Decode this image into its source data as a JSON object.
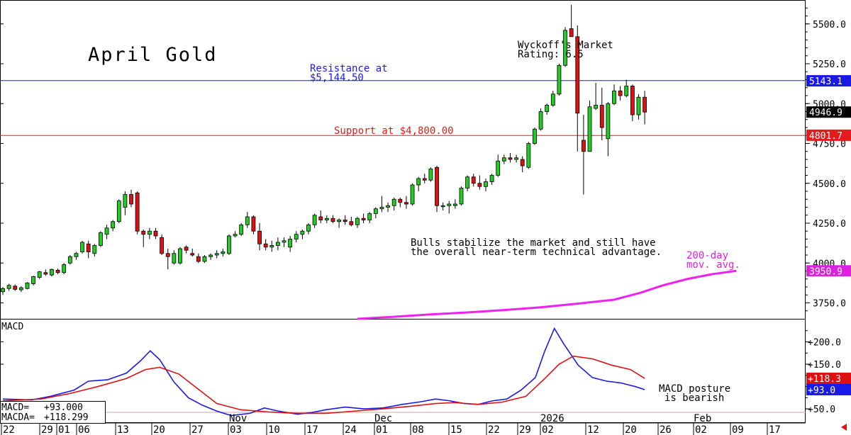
{
  "chart_data": [
    {
      "type": "candlestick",
      "title": "April Gold",
      "y_range": [
        3650,
        5650
      ],
      "y_ticks": [
        "5500.0",
        "5250.0",
        "5000.0",
        "4750.0",
        "4500.0",
        "4250.0",
        "4000.0",
        "3750.0"
      ],
      "x_tick_labels": [
        "22",
        "29",
        "01",
        "06",
        "13",
        "20",
        "27",
        "03",
        "10",
        "17",
        "24",
        "01",
        "08",
        "15",
        "22",
        "29",
        "02",
        "12",
        "20",
        "26",
        "02",
        "09",
        "17"
      ],
      "month_labels": [
        "Nov",
        "Dec",
        "2026",
        "Feb"
      ],
      "annotations": {
        "resistance": {
          "text_line1": "Resistance at",
          "text_line2": "$5,144.50",
          "value": 5144.5
        },
        "support": {
          "text": "Support at $4,800.00",
          "value": 4800.0
        },
        "rating_line1": "Wyckoff's Market",
        "rating_line2": "Rating: 6.5",
        "comment_line1": "Bulls stabilize the market and still have",
        "comment_line2": "the overall near-term technical advantage.",
        "ma_label_line1": "200-day",
        "ma_label_line2": "mov. avg."
      },
      "price_tags": [
        {
          "text": "5143.1",
          "value": 5143.1,
          "color": "#1a1ae6"
        },
        {
          "text": "4946.9",
          "value": 4946.9,
          "color": "#000000"
        },
        {
          "text": "4801.7",
          "value": 4801.7,
          "color": "#e61a1a"
        },
        {
          "text": "3950.9",
          "value": 3950.9,
          "color": "#e020e0"
        }
      ],
      "colors": {
        "up": "#22cc22",
        "down": "#dd1111",
        "resistance": "#1a1ae6",
        "support": "#e61a1a",
        "ma": "#ee22ee"
      },
      "candles": [
        [
          3820,
          3850,
          3800,
          3840
        ],
        [
          3840,
          3870,
          3825,
          3860
        ],
        [
          3855,
          3865,
          3825,
          3835
        ],
        [
          3832,
          3855,
          3818,
          3845
        ],
        [
          3840,
          3880,
          3835,
          3875
        ],
        [
          3870,
          3920,
          3860,
          3915
        ],
        [
          3910,
          3950,
          3900,
          3945
        ],
        [
          3940,
          3960,
          3920,
          3930
        ],
        [
          3925,
          3965,
          3915,
          3960
        ],
        [
          3955,
          3965,
          3930,
          3940
        ],
        [
          3940,
          4000,
          3930,
          3990
        ],
        [
          4000,
          4050,
          3990,
          4040
        ],
        [
          4040,
          4070,
          4020,
          4060
        ],
        [
          4070,
          4140,
          4060,
          4130
        ],
        [
          4120,
          4140,
          4030,
          4070
        ],
        [
          4060,
          4120,
          4040,
          4110
        ],
        [
          4110,
          4200,
          4100,
          4190
        ],
        [
          4180,
          4240,
          4150,
          4220
        ],
        [
          4220,
          4270,
          4200,
          4260
        ],
        [
          4260,
          4400,
          4250,
          4390
        ],
        [
          4350,
          4450,
          4300,
          4430
        ],
        [
          4430,
          4460,
          4350,
          4370
        ],
        [
          4440,
          4450,
          4180,
          4200
        ],
        [
          4200,
          4210,
          4100,
          4180
        ],
        [
          4180,
          4220,
          4150,
          4200
        ],
        [
          4200,
          4220,
          4150,
          4170
        ],
        [
          4160,
          4180,
          4050,
          4060
        ],
        [
          4060,
          4090,
          3960,
          4040
        ],
        [
          4000,
          4080,
          3990,
          4060
        ],
        [
          4000,
          4100,
          3990,
          4090
        ],
        [
          4100,
          4110,
          4060,
          4080
        ],
        [
          4060,
          4090,
          4040,
          4050
        ],
        [
          4040,
          4060,
          4000,
          4010
        ],
        [
          4010,
          4050,
          4000,
          4040
        ],
        [
          4040,
          4060,
          4020,
          4050
        ],
        [
          4050,
          4080,
          4030,
          4060
        ],
        [
          4060,
          4090,
          4040,
          4070
        ],
        [
          4060,
          4180,
          4050,
          4170
        ],
        [
          4170,
          4200,
          4160,
          4180
        ],
        [
          4180,
          4250,
          4170,
          4240
        ],
        [
          4240,
          4320,
          4220,
          4290
        ],
        [
          4290,
          4300,
          4180,
          4200
        ],
        [
          4200,
          4250,
          4080,
          4120
        ],
        [
          4120,
          4150,
          4080,
          4100
        ],
        [
          4100,
          4140,
          4070,
          4110
        ],
        [
          4110,
          4160,
          4080,
          4130
        ],
        [
          4130,
          4160,
          4100,
          4140
        ],
        [
          4100,
          4170,
          4070,
          4150
        ],
        [
          4150,
          4200,
          4130,
          4180
        ],
        [
          4180,
          4210,
          4150,
          4200
        ],
        [
          4200,
          4250,
          4180,
          4240
        ],
        [
          4240,
          4310,
          4220,
          4300
        ],
        [
          4290,
          4330,
          4250,
          4270
        ],
        [
          4270,
          4300,
          4250,
          4280
        ],
        [
          4280,
          4300,
          4250,
          4260
        ],
        [
          4260,
          4280,
          4220,
          4270
        ],
        [
          4270,
          4300,
          4240,
          4260
        ],
        [
          4260,
          4290,
          4230,
          4240
        ],
        [
          4240,
          4290,
          4220,
          4280
        ],
        [
          4280,
          4310,
          4250,
          4270
        ],
        [
          4270,
          4320,
          4250,
          4310
        ],
        [
          4310,
          4350,
          4280,
          4340
        ],
        [
          4340,
          4420,
          4320,
          4350
        ],
        [
          4350,
          4380,
          4320,
          4360
        ],
        [
          4360,
          4410,
          4330,
          4400
        ],
        [
          4400,
          4410,
          4350,
          4380
        ],
        [
          4380,
          4420,
          4340,
          4370
        ],
        [
          4370,
          4500,
          4360,
          4490
        ],
        [
          4490,
          4540,
          4450,
          4530
        ],
        [
          4530,
          4560,
          4500,
          4520
        ],
        [
          4520,
          4600,
          4510,
          4590
        ],
        [
          4600,
          4610,
          4320,
          4360
        ],
        [
          4360,
          4380,
          4330,
          4360
        ],
        [
          4360,
          4390,
          4310,
          4370
        ],
        [
          4360,
          4400,
          4340,
          4370
        ],
        [
          4370,
          4480,
          4360,
          4470
        ],
        [
          4470,
          4550,
          4450,
          4540
        ],
        [
          4540,
          4560,
          4480,
          4500
        ],
        [
          4500,
          4550,
          4460,
          4480
        ],
        [
          4480,
          4530,
          4450,
          4510
        ],
        [
          4510,
          4560,
          4490,
          4550
        ],
        [
          4550,
          4680,
          4540,
          4640
        ],
        [
          4640,
          4680,
          4620,
          4660
        ],
        [
          4660,
          4690,
          4630,
          4650
        ],
        [
          4650,
          4680,
          4630,
          4660
        ],
        [
          4650,
          4670,
          4570,
          4610
        ],
        [
          4600,
          4760,
          4590,
          4750
        ],
        [
          4750,
          4850,
          4740,
          4840
        ],
        [
          4840,
          4970,
          4830,
          4950
        ],
        [
          4950,
          5000,
          4930,
          4990
        ],
        [
          4990,
          5080,
          4980,
          5060
        ],
        [
          5060,
          5250,
          5050,
          5240
        ],
        [
          5240,
          5480,
          5230,
          5460
        ],
        [
          5470,
          5620,
          5440,
          5420
        ],
        [
          5420,
          5490,
          4700,
          4940
        ],
        [
          4770,
          4930,
          4430,
          4700
        ],
        [
          4700,
          5020,
          4700,
          4980
        ],
        [
          4970,
          5130,
          4960,
          4990
        ],
        [
          4990,
          5100,
          4770,
          4850
        ],
        [
          4780,
          5010,
          4670,
          5000
        ],
        [
          5000,
          5120,
          4990,
          5080
        ],
        [
          5080,
          5110,
          5020,
          5050
        ],
        [
          5050,
          5150,
          5040,
          5110
        ],
        [
          5110,
          5120,
          4890,
          4930
        ],
        [
          4930,
          5060,
          4900,
          5040
        ],
        [
          5040,
          5080,
          4870,
          4946.9
        ]
      ],
      "ma_200": [
        [
          58,
          3650
        ],
        [
          64,
          3663
        ],
        [
          70,
          3678
        ],
        [
          76,
          3690
        ],
        [
          82,
          3705
        ],
        [
          88,
          3722
        ],
        [
          94,
          3745
        ],
        [
          100,
          3770
        ],
        [
          104,
          3810
        ],
        [
          108,
          3860
        ],
        [
          112,
          3900
        ],
        [
          116,
          3930
        ],
        [
          120,
          3950.9
        ]
      ]
    },
    {
      "type": "line",
      "title": "MACD",
      "y_range": [
        20,
        250
      ],
      "y_ticks": [
        "+200.0",
        "+150.0",
        "+50.0"
      ],
      "series": [
        {
          "name": "MACD",
          "color": "#1a1ae6",
          "points": [
            [
              0,
              72
            ],
            [
              6,
              70
            ],
            [
              10,
              78
            ],
            [
              15,
              92
            ],
            [
              18,
              112
            ],
            [
              22,
              115
            ],
            [
              26,
              130
            ],
            [
              29,
              158
            ],
            [
              31,
              180
            ],
            [
              33,
              160
            ],
            [
              36,
              110
            ],
            [
              39,
              75
            ],
            [
              42,
              58
            ],
            [
              45,
              45
            ],
            [
              48,
              35
            ],
            [
              52,
              40
            ],
            [
              55,
              52
            ],
            [
              58,
              45
            ],
            [
              62,
              38
            ],
            [
              65,
              42
            ],
            [
              68,
              48
            ],
            [
              72,
              54
            ],
            [
              76,
              50
            ],
            [
              80,
              52
            ],
            [
              84,
              60
            ],
            [
              88,
              66
            ],
            [
              91,
              72
            ],
            [
              94,
              68
            ],
            [
              97,
              62
            ],
            [
              100,
              60
            ],
            [
              103,
              68
            ],
            [
              106,
              72
            ],
            [
              109,
              92
            ],
            [
              112,
              120
            ],
            [
              114,
              180
            ],
            [
              116,
              230
            ],
            [
              118,
              195
            ],
            [
              121,
              148
            ],
            [
              124,
              120
            ],
            [
              127,
              112
            ],
            [
              130,
              108
            ],
            [
              133,
              100
            ],
            [
              135,
              93
            ]
          ]
        },
        {
          "name": "MACDA",
          "color": "#dd1111",
          "points": [
            [
              0,
              68
            ],
            [
              8,
              72
            ],
            [
              14,
              84
            ],
            [
              20,
              100
            ],
            [
              26,
              118
            ],
            [
              30,
              138
            ],
            [
              33,
              143
            ],
            [
              37,
              128
            ],
            [
              41,
              95
            ],
            [
              45,
              62
            ],
            [
              50,
              48
            ],
            [
              56,
              43
            ],
            [
              62,
              40
            ],
            [
              68,
              40
            ],
            [
              74,
              45
            ],
            [
              80,
              50
            ],
            [
              86,
              56
            ],
            [
              91,
              62
            ],
            [
              95,
              64
            ],
            [
              100,
              60
            ],
            [
              105,
              65
            ],
            [
              110,
              78
            ],
            [
              114,
              118
            ],
            [
              117,
              150
            ],
            [
              120,
              168
            ],
            [
              124,
              162
            ],
            [
              128,
              148
            ],
            [
              132,
              138
            ],
            [
              135,
              118.3
            ]
          ]
        }
      ],
      "tags": [
        {
          "text": "+118.3",
          "value": 118.3,
          "color": "#dd1111"
        },
        {
          "text": "+93.0",
          "value": 93.0,
          "color": "#1a1ae6"
        }
      ],
      "readout": {
        "macd_label": "MACD=",
        "macd_value": "+93.000",
        "macda_label": "MACDA=",
        "macda_value": "+118.299"
      },
      "comment_line1": "MACD posture",
      "comment_line2": "is bearish"
    }
  ]
}
